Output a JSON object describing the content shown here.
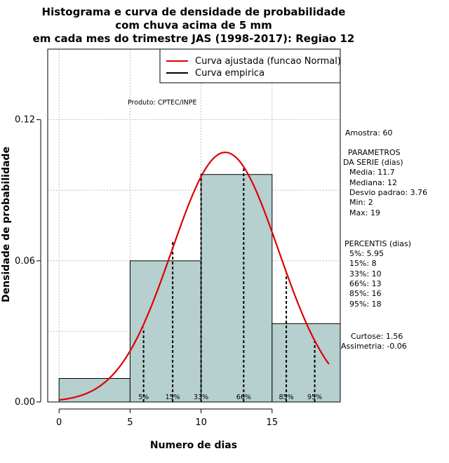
{
  "chart_data": {
    "type": "bar",
    "title_lines": [
      "Histograma e curva de densidade de probabilidade",
      "com chuva acima de 5 mm",
      "em cada mes do trimestre JAS (1998-2017): Regiao 12"
    ],
    "xlabel": "Numero de dias",
    "ylabel": "Densidade de probabilidade",
    "xlim": [
      -0.8,
      19.8
    ],
    "ylim": [
      0,
      0.15
    ],
    "x_ticks": [
      0,
      5,
      10,
      15
    ],
    "y_ticks": [
      0.0,
      0.06,
      0.12
    ],
    "y_tick_labels": [
      "0.00",
      "0.06",
      "0.12"
    ],
    "grid": true,
    "bins": [
      {
        "left": 0,
        "right": 5,
        "density": 0.01
      },
      {
        "left": 5,
        "right": 10,
        "density": 0.06
      },
      {
        "left": 10,
        "right": 15,
        "density": 0.0967
      },
      {
        "left": 15,
        "right": 20,
        "density": 0.0333
      }
    ],
    "normal_curve": {
      "mean": 11.7,
      "sd": 3.76,
      "x_from": 0,
      "x_to": 19,
      "color": "#dd0000"
    },
    "percentile_lines": [
      {
        "label": "5%",
        "x": 5.95,
        "height": 0.0315
      },
      {
        "label": "15%",
        "x": 8,
        "height": 0.068
      },
      {
        "label": "33%",
        "x": 10,
        "height": 0.097
      },
      {
        "label": "66%",
        "x": 13,
        "height": 0.1
      },
      {
        "label": "85%",
        "x": 16,
        "height": 0.0545
      },
      {
        "label": "95%",
        "x": 18,
        "height": 0.026
      }
    ],
    "legend": {
      "placement": "top-right",
      "entries": [
        {
          "label": "Curva ajustada (funcao Normal)",
          "color": "#dd0000"
        },
        {
          "label": "Curva empirica",
          "color": "#000000"
        }
      ]
    },
    "annotations": {
      "produto": "Produto: CPTEC/INPE",
      "amostra": "Amostra: 60",
      "parametros": [
        "PARAMETROS",
        "DA SERIE (dias)",
        "Media: 11.7",
        "Mediana: 12",
        "Desvio padrao: 3.76",
        "Min: 2",
        "Max: 19"
      ],
      "percentis": [
        "PERCENTIS (dias)",
        "5%: 5.95",
        "15%: 8",
        "33%: 10",
        "66%: 13",
        "85%: 16",
        "95%: 18"
      ],
      "curtose": "Curtose: 1.56",
      "assimetria": "Assimetria: -0.06"
    },
    "colors": {
      "bar_fill": "#b6cfcf",
      "curve": "#dd0000",
      "grid": "#b0b0b0"
    }
  }
}
